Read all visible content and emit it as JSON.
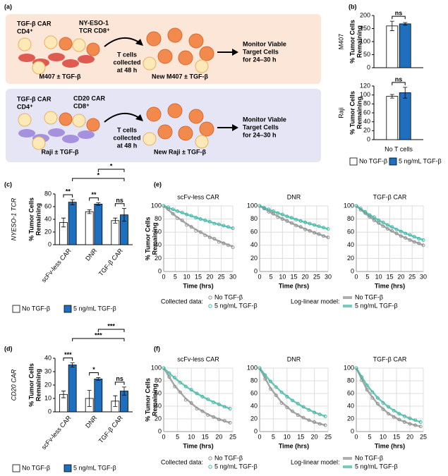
{
  "panel_labels": [
    "(a)",
    "(b)",
    "(c)",
    "(d)",
    "(e)",
    "(f)"
  ],
  "diagram": {
    "rows": [
      {
        "cd4": [
          "TGF-β CAR",
          "CD4⁺"
        ],
        "cd8": [
          "NY-ESO-1",
          "TCR CD8⁺"
        ],
        "step": [
          "T cells",
          "collected",
          "at 48 h"
        ],
        "target": "M407 ± TGF-β",
        "new_target": "New M407 ± TGF-β",
        "monitor": [
          "Monitor Viable",
          "Target Cells",
          "for 24–30 h"
        ]
      },
      {
        "cd4": [
          "TGF-β CAR",
          "CD4⁺"
        ],
        "cd8": [
          "CD20 CAR",
          "CD8⁺"
        ],
        "step": [
          "T cells",
          "collected",
          "at 48 h"
        ],
        "target": "Raji ± TGF-β",
        "new_target": "New Raji ± TGF-β",
        "monitor": [
          "Monitor Viable",
          "Target Cells",
          "for 24–30 h"
        ]
      }
    ]
  },
  "chart_data": [
    {
      "type": "bar",
      "categories": [
        "No T cells"
      ],
      "series": [
        {
          "name": "No TGF-β",
          "color": "#ffffff"
        },
        {
          "name": "5 ng/mL TGF-β",
          "color": "#1f6fbf"
        }
      ],
      "panels": [
        {
          "side_label": "M407",
          "ylabel": [
            "% Tumor Cells",
            "Remaining"
          ],
          "ylim": [
            0,
            200
          ],
          "yticks": [
            0,
            50,
            100,
            150,
            200
          ],
          "series": [
            {
              "values": [
                160
              ],
              "errors": [
                18
              ]
            },
            {
              "values": [
                168
              ],
              "errors": [
                5
              ]
            }
          ],
          "significance": [
            "ns"
          ]
        },
        {
          "side_label": "Raji",
          "ylabel": [
            "% Tumor Cells",
            "Remaining"
          ],
          "ylim": [
            0,
            120
          ],
          "yticks": [
            0,
            20,
            40,
            60,
            80,
            100,
            120
          ],
          "series": [
            {
              "values": [
                97
              ],
              "errors": [
                4
              ]
            },
            {
              "values": [
                105
              ],
              "errors": [
                12
              ]
            }
          ],
          "significance": [
            "ns"
          ]
        }
      ]
    },
    {
      "type": "bar",
      "side_label": "NYESO-1 TCR",
      "ylabel": [
        "% Tumor Cells",
        "Remaining"
      ],
      "categories": [
        "scFv-less CAR",
        "DNR",
        "TGF-β CAR"
      ],
      "series": [
        {
          "name": "No TGF-β",
          "color": "#ffffff",
          "values": [
            35,
            52,
            38
          ],
          "errors": [
            7,
            3,
            4
          ]
        },
        {
          "name": "5 ng/mL TGF-β",
          "color": "#1f6fbf",
          "values": [
            67,
            64,
            47
          ],
          "errors": [
            4,
            2,
            10
          ]
        }
      ],
      "ylim": [
        0,
        80
      ],
      "yticks": [
        0,
        20,
        40,
        60,
        80
      ],
      "significance": [
        "**",
        "**",
        "ns",
        "*",
        "*"
      ]
    },
    {
      "type": "bar",
      "side_label": "CD20 CAR",
      "ylabel": [
        "% Tumor Cells",
        "Remaining"
      ],
      "categories": [
        "scFv-less CAR",
        "DNR",
        "TGF-β CAR"
      ],
      "series": [
        {
          "name": "No TGF-β",
          "color": "#ffffff",
          "values": [
            13,
            10,
            8
          ],
          "errors": [
            2.5,
            6,
            4
          ]
        },
        {
          "name": "5 ng/mL TGF-β",
          "color": "#1f6fbf",
          "values": [
            35,
            24.5,
            15.5
          ],
          "errors": [
            1.5,
            1,
            3
          ]
        }
      ],
      "ylim": [
        0,
        40
      ],
      "yticks": [
        0,
        10,
        20,
        30,
        40
      ],
      "significance": [
        "***",
        "*",
        "ns",
        "***",
        "***"
      ]
    },
    {
      "type": "line",
      "ylabel": [
        "% Tumor Cells",
        "Remaining"
      ],
      "xlabel": "Time (hrs)",
      "xlim": [
        0,
        30
      ],
      "xticks": [
        0,
        5,
        10,
        15,
        20,
        25,
        30
      ],
      "ylim": [
        0,
        100
      ],
      "yticks": [
        0,
        20,
        40,
        60,
        80,
        100
      ],
      "grid": true,
      "legend": {
        "data_title": "Collected data:",
        "model_title": "Log-linear model:"
      },
      "series": [
        {
          "name": "No TGF-β",
          "color": "#8c8c8c"
        },
        {
          "name": "5 ng/mL TGF-β",
          "color": "#3fb4a3"
        }
      ],
      "x": [
        0,
        2,
        4,
        6,
        8,
        10,
        12,
        14,
        16,
        18,
        20,
        22,
        24,
        26,
        28,
        30
      ],
      "model_x": [
        0,
        5,
        10,
        15,
        20,
        25,
        30
      ],
      "panels": [
        {
          "title": "scFv-less CAR",
          "data": [
            [
              100,
              95,
              88,
              81,
              78,
              71,
              68,
              62,
              60,
              55,
              52,
              50,
              45,
              43,
              40,
              37
            ],
            [
              100,
              98,
              95,
              92,
              90,
              87,
              85,
              82,
              80,
              78,
              76,
              73,
              72,
              70,
              68,
              66
            ]
          ],
          "model": [
            [
              100,
              85.1,
              72.5,
              61.7,
              52.5,
              44.7,
              38.0
            ],
            [
              100,
              93.3,
              87.0,
              81.2,
              75.7,
              70.6,
              65.9
            ]
          ]
        },
        {
          "title": "DNR",
          "data": [
            [
              100,
              96,
              91,
              88,
              83,
              80,
              77,
              74,
              70,
              68,
              64,
              62,
              59,
              57,
              54,
              52
            ],
            [
              100,
              97,
              95,
              92,
              89,
              87,
              84,
              82,
              79,
              77,
              75,
              73,
              71,
              69,
              67,
              65
            ]
          ],
          "model": [
            [
              100,
              89.7,
              80.4,
              72.1,
              64.7,
              58.0,
              52.0
            ],
            [
              100,
              93.1,
              86.6,
              80.6,
              75.0,
              69.8,
              64.9
            ]
          ]
        },
        {
          "title": "TGF-β CAR",
          "data": [
            [
              100,
              94,
              89,
              83,
              78,
              74,
              69,
              65,
              62,
              58,
              54,
              51,
              48,
              45,
              43,
              40
            ],
            [
              100,
              96,
              91,
              86,
              83,
              78,
              75,
              71,
              68,
              64,
              61,
              58,
              56,
              53,
              50,
              48
            ]
          ],
          "model": [
            [
              100,
              85.9,
              73.7,
              63.3,
              54.3,
              46.7,
              40.1
            ],
            [
              100,
              88.4,
              78.3,
              69.2,
              61.3,
              54.2,
              47.9
            ]
          ]
        }
      ]
    },
    {
      "type": "line",
      "ylabel": [
        "% Tumor Cells",
        "Remaining"
      ],
      "xlabel": "Time (hrs)",
      "xlim": [
        0,
        25
      ],
      "xticks": [
        0,
        5,
        10,
        15,
        20,
        25
      ],
      "ylim": [
        0,
        100
      ],
      "yticks": [
        0,
        20,
        40,
        60,
        80,
        100
      ],
      "grid": true,
      "legend": {
        "data_title": "Collected data:",
        "model_title": "Log-linear model:"
      },
      "series": [
        {
          "name": "No TGF-β",
          "color": "#8c8c8c"
        },
        {
          "name": "5 ng/mL TGF-β",
          "color": "#3fb4a3"
        }
      ],
      "x": [
        0,
        2,
        4,
        6,
        8,
        10,
        12,
        14,
        16,
        18,
        20,
        22,
        24
      ],
      "model_x": [
        0,
        4,
        8,
        12,
        16,
        20,
        24
      ],
      "panels": [
        {
          "title": "scFv-less CAR",
          "data": [
            [
              100,
              86,
              71,
              62,
              50,
              45,
              36,
              32,
              26,
              23,
              19,
              17,
              14
            ],
            [
              100,
              92,
              85,
              77,
              71,
              66,
              60,
              55,
              51,
              46,
              43,
              39,
              36
            ]
          ],
          "model": [
            [
              100,
              72.0,
              51.9,
              37.4,
              26.9,
              19.4,
              14.0
            ],
            [
              100,
              84.3,
              71.1,
              60.0,
              50.6,
              42.7,
              36.0
            ]
          ]
        },
        {
          "title": "DNR",
          "data": [
            [
              100,
              83,
              67,
              57,
              45,
              38,
              32,
              26,
              22,
              18,
              15,
              12,
              10
            ],
            [
              100,
              89,
              79,
              70,
              62,
              55,
              49,
              44,
              39,
              34,
              30,
              27,
              24
            ]
          ],
          "model": [
            [
              100,
              68.1,
              46.4,
              31.6,
              21.5,
              14.7,
              10.0
            ],
            [
              100,
              78.8,
              62.1,
              49.0,
              38.6,
              30.4,
              24.0
            ]
          ]
        },
        {
          "title": "TGF-β CAR",
          "data": [
            [
              100,
              81,
              66,
              53,
              44,
              35,
              28,
              23,
              19,
              15,
              12,
              10,
              8
            ],
            [
              100,
              86,
              73,
              62,
              53,
              45,
              39,
              33,
              28,
              24,
              21,
              18,
              15
            ]
          ],
          "model": [
            [
              100,
              65.7,
              43.2,
              28.4,
              18.6,
              12.2,
              8.0
            ],
            [
              100,
              72.9,
              53.1,
              38.7,
              28.2,
              20.6,
              15.0
            ]
          ]
        }
      ]
    }
  ]
}
